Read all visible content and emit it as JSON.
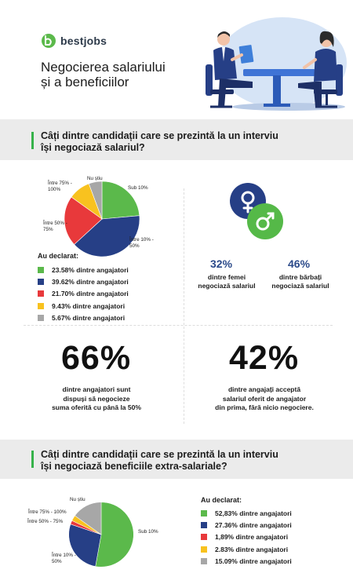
{
  "header": {
    "logo_text": "bestjobs",
    "title_line1": "Negocierea salariului",
    "title_line2": "și a beneficiilor"
  },
  "section1": {
    "question_line1": "Câți dintre candidații care se prezintă la un interviu",
    "question_line2": "își negociază salariul?"
  },
  "section2": {
    "question_line1": "Câți dintre candidații care se prezintă la un interviu",
    "question_line2": "își negociază beneficiile extra-salariale?"
  },
  "gender": {
    "women_pct": "32%",
    "women_line1": "dintre femei",
    "women_line2": "negociază salariul",
    "men_pct": "46%",
    "men_line1": "dintre bărbați",
    "men_line2": "negociază salariul",
    "female_color": "#263f86",
    "male_color": "#55b948"
  },
  "stats": {
    "left_pct": "66%",
    "left_line1": "dintre angajatori sunt",
    "left_line2": "dispuși să negocieze",
    "left_line3": "suma oferită cu până la 50%",
    "right_pct": "42%",
    "right_line1": "dintre angajați acceptă",
    "right_line2": "salariul oferit de angajator",
    "right_line3": "din prima, fără nicio negociere."
  },
  "chart_data": [
    {
      "type": "pie",
      "title": "Câți dintre candidații care se prezintă la un interviu își negociază salariul?",
      "legend_title": "Au declarat:",
      "slices": [
        {
          "label": "Sub 10%",
          "value": 23.58,
          "legend": "23.58% dintre angajatori",
          "color": "#5bb94b"
        },
        {
          "label": "Între 10% - 50%",
          "value": 39.62,
          "legend": "39.62% dintre angajatori",
          "color": "#263f86"
        },
        {
          "label": "Între 50% - 75%",
          "value": 21.7,
          "legend": "21.70% dintre angajatori",
          "color": "#e8393b"
        },
        {
          "label": "Între 75% - 100%",
          "value": 9.43,
          "legend": "9.43% dintre angajatori",
          "color": "#f8c21f"
        },
        {
          "label": "Nu știu",
          "value": 5.67,
          "legend": "5.67% dintre angajatori",
          "color": "#a7a7a7"
        }
      ]
    },
    {
      "type": "pie",
      "title": "Câți dintre candidații care se prezintă la un interviu își negociază beneficiile extra-salariale?",
      "legend_title": "Au declarat:",
      "slices": [
        {
          "label": "Sub 10%",
          "value": 52.83,
          "legend": "52,83% dintre angajatori",
          "color": "#5bb94b"
        },
        {
          "label": "Între 10% - 50%",
          "value": 27.36,
          "legend": "27.36% dintre angajatori",
          "color": "#263f86"
        },
        {
          "label": "Între 50% - 75%",
          "value": 1.89,
          "legend": "1,89% dintre angajatori",
          "color": "#e8393b"
        },
        {
          "label": "Între 75% - 100%",
          "value": 2.83,
          "legend": "2.83% dintre angajatori",
          "color": "#f8c21f"
        },
        {
          "label": "Nu știu",
          "value": 15.09,
          "legend": "15.09% dintre angajatori",
          "color": "#a7a7a7"
        }
      ]
    }
  ]
}
